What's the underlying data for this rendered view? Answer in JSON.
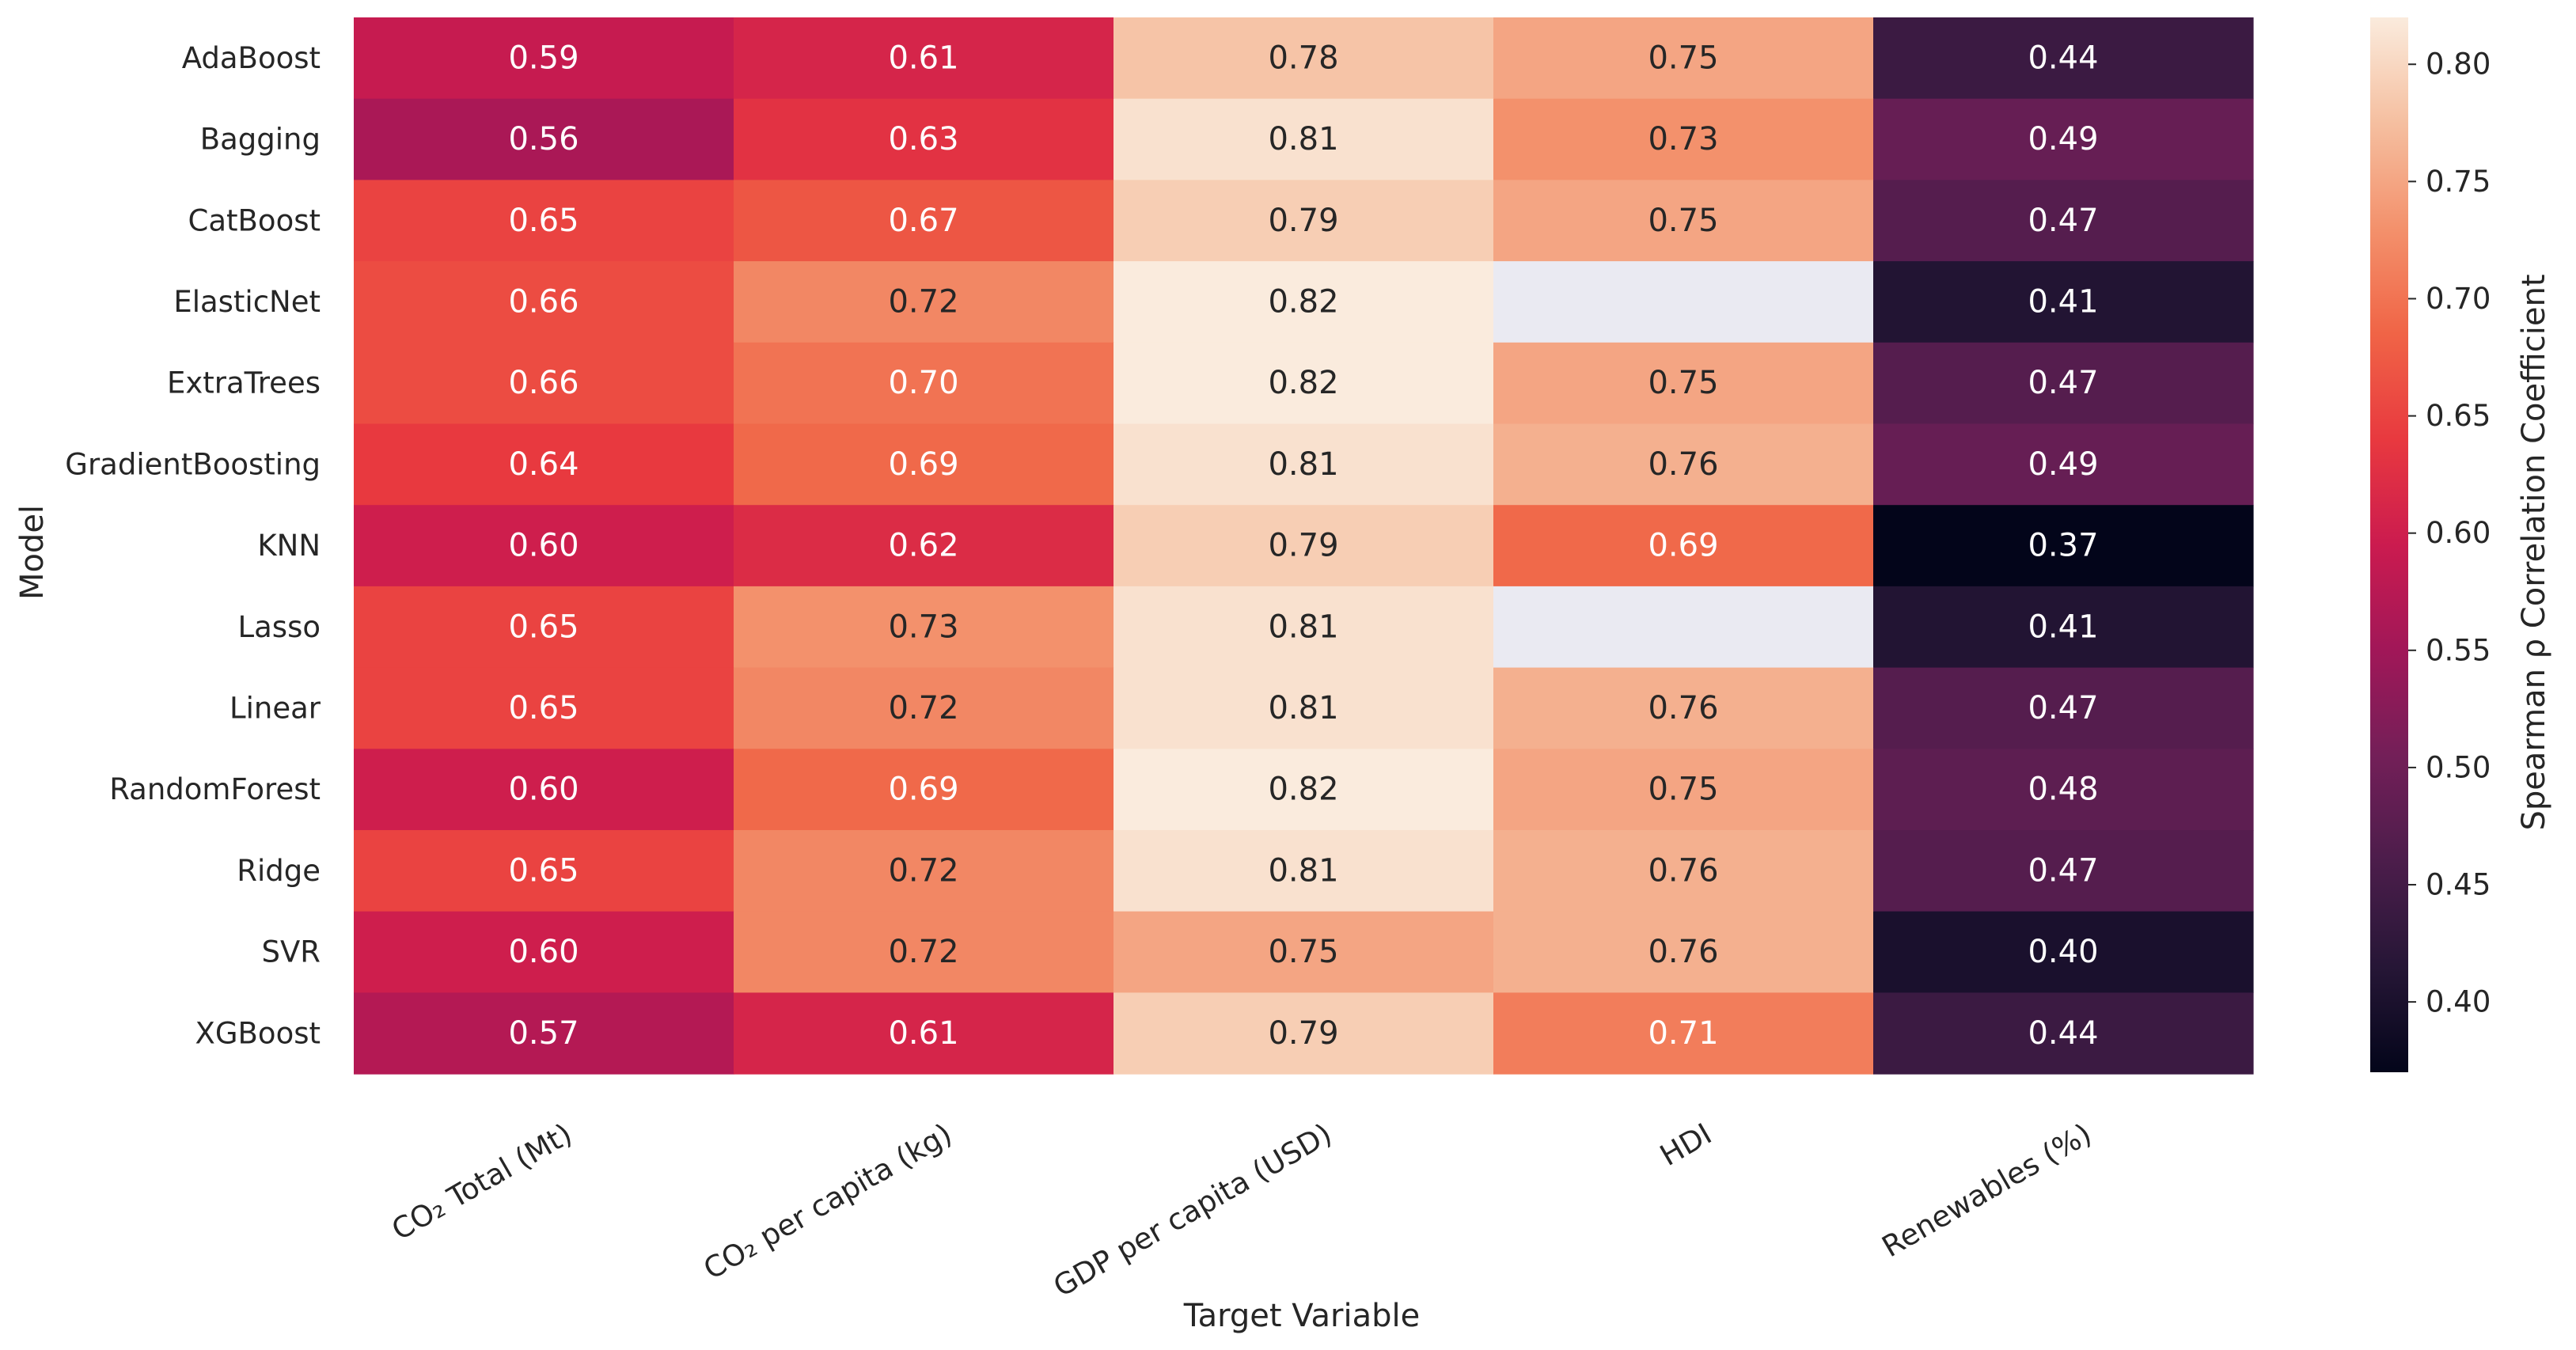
{
  "chart_data": {
    "type": "heatmap",
    "title": "",
    "xlabel": "Target Variable",
    "ylabel": "Model",
    "columns": [
      "CO₂ Total (Mt)",
      "CO₂ per capita (kg)",
      "GDP per capita (USD)",
      "HDI",
      "Renewables (%)"
    ],
    "rows": [
      "AdaBoost",
      "Bagging",
      "CatBoost",
      "ElasticNet",
      "ExtraTrees",
      "GradientBoosting",
      "KNN",
      "Lasso",
      "Linear",
      "RandomForest",
      "Ridge",
      "SVR",
      "XGBoost"
    ],
    "values": [
      [
        0.59,
        0.61,
        0.78,
        0.75,
        0.44
      ],
      [
        0.56,
        0.63,
        0.81,
        0.73,
        0.49
      ],
      [
        0.65,
        0.67,
        0.79,
        0.75,
        0.47
      ],
      [
        0.66,
        0.72,
        0.82,
        null,
        0.41
      ],
      [
        0.66,
        0.7,
        0.82,
        0.75,
        0.47
      ],
      [
        0.64,
        0.69,
        0.81,
        0.76,
        0.49
      ],
      [
        0.6,
        0.62,
        0.79,
        0.69,
        0.37
      ],
      [
        0.65,
        0.73,
        0.81,
        null,
        0.41
      ],
      [
        0.65,
        0.72,
        0.81,
        0.76,
        0.47
      ],
      [
        0.6,
        0.69,
        0.82,
        0.75,
        0.48
      ],
      [
        0.65,
        0.72,
        0.81,
        0.76,
        0.47
      ],
      [
        0.6,
        0.72,
        0.75,
        0.76,
        0.4
      ],
      [
        0.57,
        0.61,
        0.79,
        0.71,
        0.44
      ]
    ],
    "colormap": "rocket",
    "missing_color": "#eaeaf2",
    "colorbar": {
      "label": "Spearman ρ Correlation Coefficient",
      "vmin": 0.37,
      "vmax": 0.82,
      "ticks": [
        0.4,
        0.45,
        0.5,
        0.55,
        0.6,
        0.65,
        0.7,
        0.75,
        0.8
      ]
    }
  }
}
